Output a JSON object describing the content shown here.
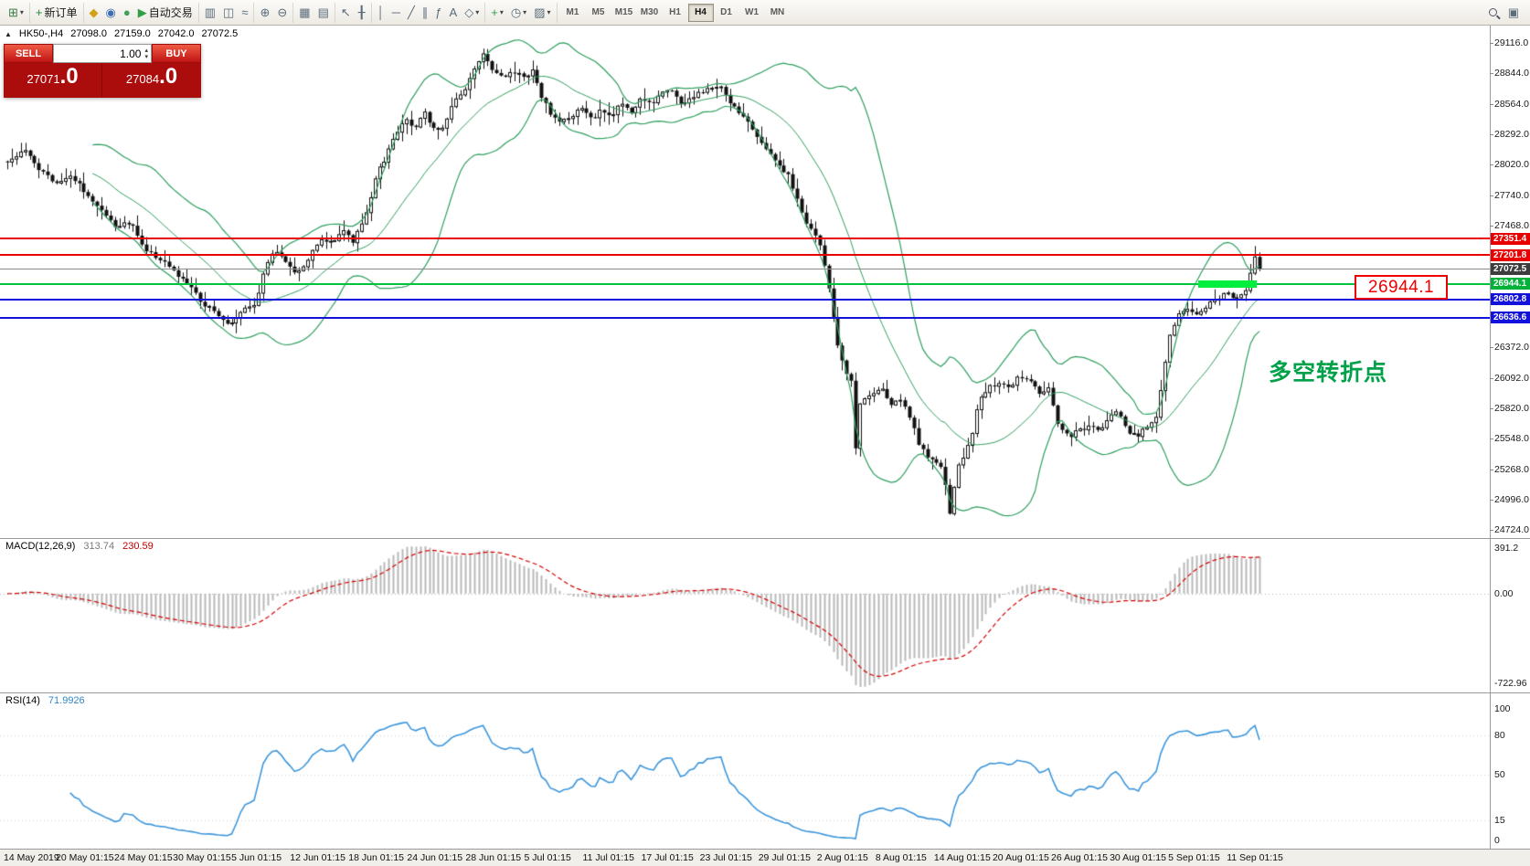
{
  "toolbar": {
    "groups": [
      [
        {
          "name": "new-chart",
          "glyph": "⊞",
          "color": "#3a7d44",
          "dd": true
        }
      ],
      [
        {
          "name": "new-order",
          "glyph": "+",
          "color": "#1f8a3b",
          "label": "新订单"
        }
      ],
      [
        {
          "name": "metaquotes",
          "glyph": "◆",
          "color": "#d4a017"
        },
        {
          "name": "profile",
          "glyph": "◉",
          "color": "#3f6fb5"
        },
        {
          "name": "news",
          "glyph": "●",
          "color": "#3fa05a"
        },
        {
          "name": "autotrading",
          "glyph": "▶",
          "color": "#2f9e44",
          "label": "自动交易"
        }
      ],
      [
        {
          "name": "bar-chart-mode",
          "glyph": "▥"
        },
        {
          "name": "candlestick-mode",
          "glyph": "◫"
        },
        {
          "name": "line-chart-mode",
          "glyph": "≈"
        }
      ],
      [
        {
          "name": "zoom-in",
          "glyph": "⊕"
        },
        {
          "name": "zoom-out",
          "glyph": "⊖"
        }
      ],
      [
        {
          "name": "tile-windows",
          "glyph": "▦"
        },
        {
          "name": "auto-arrange",
          "glyph": "▤"
        }
      ],
      [
        {
          "name": "cursor",
          "glyph": "↖"
        },
        {
          "name": "crosshair",
          "glyph": "╂"
        }
      ],
      [
        {
          "name": "vertical-line-tool",
          "glyph": "│"
        },
        {
          "name": "horizontal-line-tool",
          "glyph": "─"
        },
        {
          "name": "trendline-tool",
          "glyph": "╱"
        },
        {
          "name": "channel-tool",
          "glyph": "∥"
        },
        {
          "name": "fibonacci-tool",
          "glyph": "ƒ"
        },
        {
          "name": "text-tool",
          "glyph": "A"
        },
        {
          "name": "arrow-tool",
          "glyph": "◇",
          "dd": true
        }
      ],
      [
        {
          "name": "indicators",
          "glyph": "+",
          "color": "#2f9e44",
          "dd": true
        },
        {
          "name": "timeframes-menu",
          "glyph": "◷",
          "dd": true
        },
        {
          "name": "templates",
          "glyph": "▨",
          "dd": true
        }
      ]
    ],
    "timeframes": [
      "M1",
      "M5",
      "M15",
      "M30",
      "H1",
      "H4",
      "D1",
      "W1",
      "MN"
    ],
    "active_timeframe": "H4",
    "right_items": [
      {
        "name": "search",
        "css": "mag"
      },
      {
        "name": "layout",
        "glyph": "▣"
      }
    ]
  },
  "chart": {
    "info": {
      "collapse_icon": "▲",
      "symbol": "HK50-,H4",
      "open": "27098.0",
      "high": "27159.0",
      "low": "27042.0",
      "close": "27072.5"
    },
    "trade_panel": {
      "sell_label": "SELL",
      "buy_label": "BUY",
      "volume": "1.00",
      "sell_price_main": "27071",
      "sell_price_big": ".0",
      "buy_price_main": "27084",
      "buy_price_big": ".0"
    },
    "levels": [
      {
        "value": 27351.4,
        "line_color": "#e80000",
        "tag_color": "#e80000",
        "thickness": 2
      },
      {
        "value": 27201.8,
        "line_color": "#e80000",
        "tag_color": "#e80000",
        "thickness": 2
      },
      {
        "value": 27072.5,
        "line_color": "#8a8a8a",
        "tag_color": "#3d3d3d",
        "thickness": 1,
        "current": true
      },
      {
        "value": 26944.1,
        "line_color": "#00c43c",
        "tag_color": "#00b238",
        "thickness": 2,
        "highlight": true,
        "highlight_color": "#00ef3e"
      },
      {
        "value": 26802.8,
        "line_color": "#1212dc",
        "tag_color": "#1212dc",
        "thickness": 2
      },
      {
        "value": 26636.6,
        "line_color": "#1212dc",
        "tag_color": "#1212dc",
        "thickness": 2
      }
    ],
    "callout": {
      "text": "26944.1",
      "color": "#ef0000"
    },
    "annotation": {
      "text": "多空转折点",
      "color": "#00a149"
    }
  },
  "chart_data": {
    "type": "candlestick",
    "symbol": "HK50-",
    "timeframe": "H4",
    "ohlc_current": {
      "open": 27098.0,
      "high": 27159.0,
      "low": 27042.0,
      "close": 27072.5
    },
    "y_ticks": [
      29116.0,
      28844.0,
      28564.0,
      28292.0,
      28020.0,
      27740.0,
      27468.0,
      26372.0,
      26092.0,
      25820.0,
      25548.0,
      25268.0,
      24996.0,
      24724.0
    ],
    "time_labels": [
      "14 May 2019",
      "20 May 01:15",
      "24 May 01:15",
      "30 May 01:15",
      "5 Jun 01:15",
      "12 Jun 01:15",
      "18 Jun 01:15",
      "24 Jun 01:15",
      "28 Jun 01:15",
      "5 Jul 01:15",
      "11 Jul 01:15",
      "17 Jul 01:15",
      "23 Jul 01:15",
      "29 Jul 01:15",
      "2 Aug 01:15",
      "8 Aug 01:15",
      "14 Aug 01:15",
      "20 Aug 01:15",
      "26 Aug 01:15",
      "30 Aug 01:15",
      "5 Sep 01:15",
      "11 Sep 01:15"
    ],
    "bar_count": 280,
    "last_close": 27072.5,
    "price_path": [
      [
        0.0,
        28060
      ],
      [
        0.016,
        28150
      ],
      [
        0.027,
        27950
      ],
      [
        0.039,
        27850
      ],
      [
        0.051,
        27920
      ],
      [
        0.063,
        27760
      ],
      [
        0.075,
        27620
      ],
      [
        0.086,
        27460
      ],
      [
        0.098,
        27500
      ],
      [
        0.11,
        27260
      ],
      [
        0.122,
        27160
      ],
      [
        0.133,
        27060
      ],
      [
        0.145,
        26920
      ],
      [
        0.157,
        26760
      ],
      [
        0.169,
        26660
      ],
      [
        0.176,
        26560
      ],
      [
        0.188,
        26700
      ],
      [
        0.198,
        26760
      ],
      [
        0.205,
        27060
      ],
      [
        0.213,
        27260
      ],
      [
        0.221,
        27160
      ],
      [
        0.229,
        27030
      ],
      [
        0.237,
        27120
      ],
      [
        0.245,
        27260
      ],
      [
        0.253,
        27350
      ],
      [
        0.26,
        27300
      ],
      [
        0.268,
        27420
      ],
      [
        0.276,
        27330
      ],
      [
        0.286,
        27550
      ],
      [
        0.294,
        27900
      ],
      [
        0.302,
        28080
      ],
      [
        0.31,
        28300
      ],
      [
        0.318,
        28420
      ],
      [
        0.325,
        28340
      ],
      [
        0.333,
        28500
      ],
      [
        0.341,
        28320
      ],
      [
        0.349,
        28360
      ],
      [
        0.357,
        28600
      ],
      [
        0.365,
        28660
      ],
      [
        0.373,
        28900
      ],
      [
        0.38,
        29000
      ],
      [
        0.388,
        28860
      ],
      [
        0.396,
        28800
      ],
      [
        0.404,
        28860
      ],
      [
        0.412,
        28800
      ],
      [
        0.42,
        28880
      ],
      [
        0.427,
        28620
      ],
      [
        0.435,
        28460
      ],
      [
        0.443,
        28400
      ],
      [
        0.451,
        28460
      ],
      [
        0.459,
        28520
      ],
      [
        0.467,
        28420
      ],
      [
        0.475,
        28520
      ],
      [
        0.482,
        28460
      ],
      [
        0.49,
        28560
      ],
      [
        0.498,
        28500
      ],
      [
        0.506,
        28600
      ],
      [
        0.514,
        28560
      ],
      [
        0.522,
        28660
      ],
      [
        0.529,
        28720
      ],
      [
        0.537,
        28560
      ],
      [
        0.545,
        28620
      ],
      [
        0.553,
        28660
      ],
      [
        0.561,
        28700
      ],
      [
        0.569,
        28740
      ],
      [
        0.576,
        28600
      ],
      [
        0.584,
        28500
      ],
      [
        0.592,
        28400
      ],
      [
        0.6,
        28260
      ],
      [
        0.608,
        28120
      ],
      [
        0.616,
        28020
      ],
      [
        0.624,
        27920
      ],
      [
        0.631,
        27700
      ],
      [
        0.639,
        27460
      ],
      [
        0.647,
        27360
      ],
      [
        0.655,
        26960
      ],
      [
        0.663,
        26380
      ],
      [
        0.671,
        26120
      ],
      [
        0.674,
        26050
      ],
      [
        0.677,
        25400
      ],
      [
        0.68,
        25850
      ],
      [
        0.69,
        25960
      ],
      [
        0.698,
        26010
      ],
      [
        0.706,
        25860
      ],
      [
        0.714,
        25910
      ],
      [
        0.722,
        25710
      ],
      [
        0.729,
        25460
      ],
      [
        0.737,
        25360
      ],
      [
        0.747,
        25260
      ],
      [
        0.753,
        24860
      ],
      [
        0.759,
        25280
      ],
      [
        0.769,
        25520
      ],
      [
        0.776,
        25900
      ],
      [
        0.784,
        26010
      ],
      [
        0.792,
        26060
      ],
      [
        0.8,
        26010
      ],
      [
        0.808,
        26110
      ],
      [
        0.816,
        26060
      ],
      [
        0.824,
        25960
      ],
      [
        0.831,
        26010
      ],
      [
        0.839,
        25660
      ],
      [
        0.847,
        25560
      ],
      [
        0.855,
        25610
      ],
      [
        0.863,
        25660
      ],
      [
        0.871,
        25610
      ],
      [
        0.878,
        25710
      ],
      [
        0.886,
        25810
      ],
      [
        0.894,
        25610
      ],
      [
        0.902,
        25560
      ],
      [
        0.91,
        25660
      ],
      [
        0.918,
        25760
      ],
      [
        0.927,
        26420
      ],
      [
        0.935,
        26660
      ],
      [
        0.943,
        26710
      ],
      [
        0.951,
        26660
      ],
      [
        0.959,
        26760
      ],
      [
        0.966,
        26810
      ],
      [
        0.974,
        26860
      ],
      [
        0.982,
        26810
      ],
      [
        0.99,
        26910
      ],
      [
        0.996,
        27200
      ],
      [
        1.0,
        27072.5
      ]
    ],
    "indicators": {
      "bollinger": {
        "name": "Bollinger Bands",
        "period": 20,
        "deviation": 2,
        "color": "#2e9e5e"
      },
      "macd": {
        "label": "MACD(12,26,9)",
        "value1": "313.74",
        "value2": "230.59",
        "axis_max": "391.2",
        "axis_zero": "0.00",
        "axis_min": "-722.96",
        "hist_color": "#b9b9b9",
        "signal_color": "#d40000"
      },
      "rsi": {
        "label": "RSI(14)",
        "value": "71.9926",
        "levels": [
          100,
          80,
          50,
          15,
          0
        ],
        "color": "#3d96db"
      }
    }
  }
}
